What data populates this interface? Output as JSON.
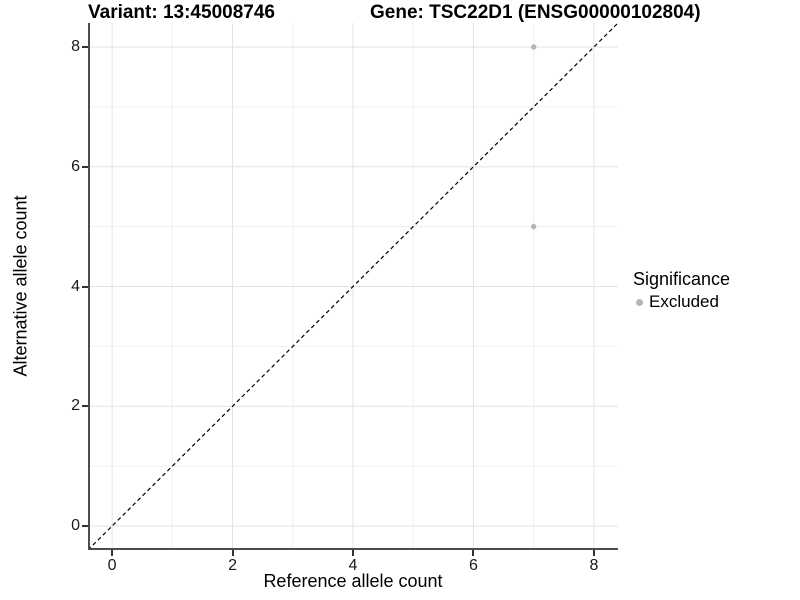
{
  "titles": {
    "left": "Variant: 13:45008746",
    "right": "Gene: TSC22D1 (ENSG00000102804)"
  },
  "legend": {
    "title": "Significance",
    "items": [
      {
        "label": "Excluded",
        "color": "#b5b5b5"
      }
    ]
  },
  "colors": {
    "grid_major": "#e3e3e3",
    "grid_minor": "#efefef",
    "axis_line": "#4d4d4d",
    "tick_mark": "#333333",
    "point": "#b5b5b5",
    "identity_line": "#000000"
  },
  "chart_data": {
    "type": "scatter",
    "title_left": "Variant: 13:45008746",
    "title_right": "Gene: TSC22D1 (ENSG00000102804)",
    "xlabel": "Reference allele count",
    "ylabel": "Alternative allele count",
    "xlim": [
      -0.4,
      8.4
    ],
    "ylim": [
      -0.4,
      8.4
    ],
    "x_ticks": [
      0,
      2,
      4,
      6,
      8
    ],
    "y_ticks": [
      0,
      2,
      4,
      6,
      8
    ],
    "x_minor": [
      1,
      3,
      5,
      7
    ],
    "y_minor": [
      1,
      3,
      5,
      7
    ],
    "grid": true,
    "legend_position": "right",
    "series": [
      {
        "name": "Excluded",
        "color": "#b5b5b5",
        "points": [
          {
            "x": 7,
            "y": 8
          },
          {
            "x": 7,
            "y": 5
          }
        ]
      }
    ],
    "reference_line": {
      "type": "identity",
      "slope": 1,
      "intercept": 0,
      "style": "dashed",
      "color": "#000000"
    }
  }
}
